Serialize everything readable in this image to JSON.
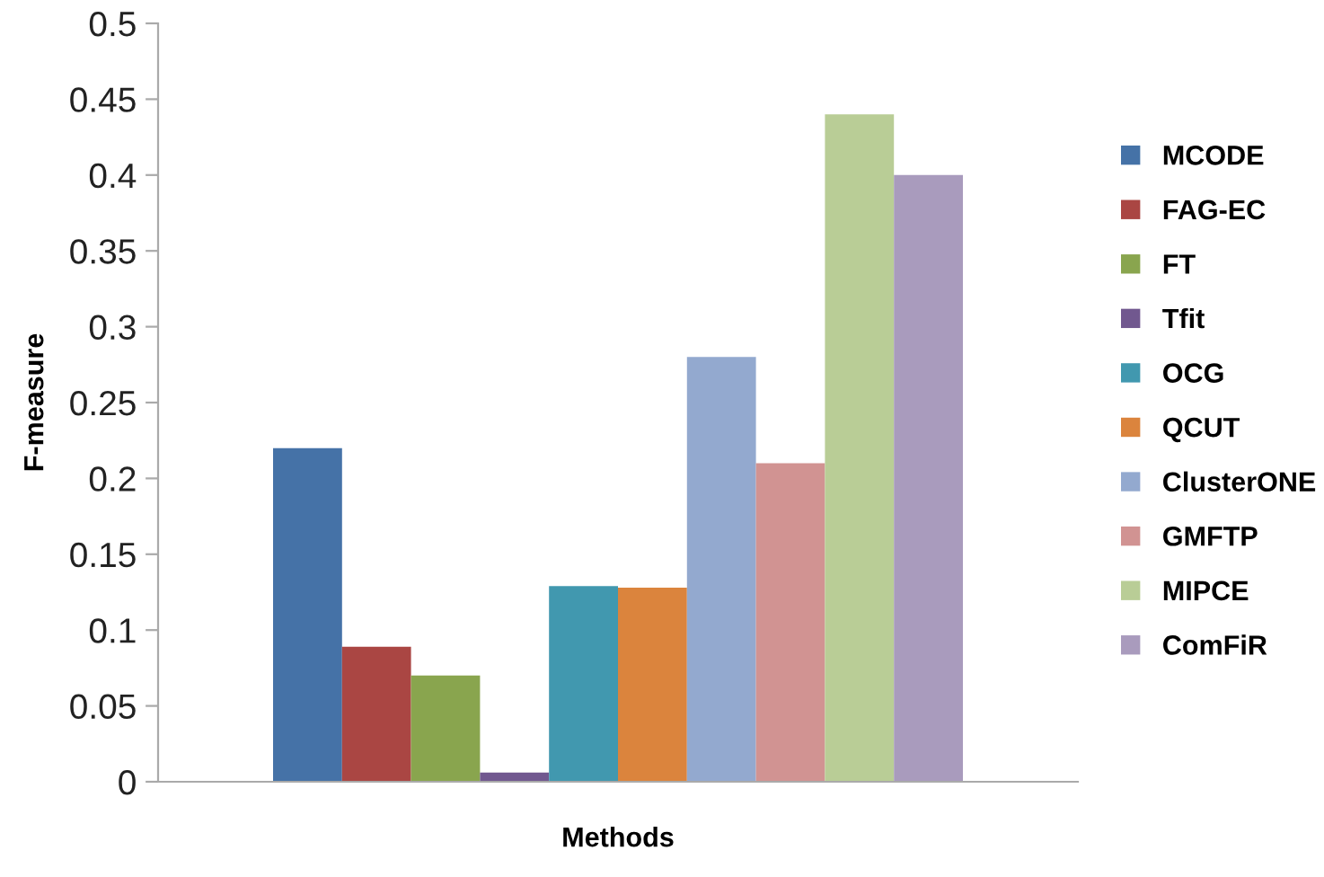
{
  "chart_data": {
    "type": "bar",
    "xlabel": "Methods",
    "ylabel": "F-measure",
    "categories": [
      null
    ],
    "series": [
      {
        "name": "MCODE",
        "color": "#4572a7",
        "values": [
          0.22
        ]
      },
      {
        "name": "FAG-EC",
        "color": "#aa4643",
        "values": [
          0.089
        ]
      },
      {
        "name": "FT",
        "color": "#89a54e",
        "values": [
          0.07
        ]
      },
      {
        "name": "Tfit",
        "color": "#71588f",
        "values": [
          0.006
        ]
      },
      {
        "name": "OCG",
        "color": "#4198af",
        "values": [
          0.129
        ]
      },
      {
        "name": "QCUT",
        "color": "#db843d",
        "values": [
          0.128
        ]
      },
      {
        "name": "ClusterONE",
        "color": "#93a9cf",
        "values": [
          0.28
        ]
      },
      {
        "name": "GMFTP",
        "color": "#d19392",
        "values": [
          0.21
        ]
      },
      {
        "name": "MIPCE",
        "color": "#b9cd96",
        "values": [
          0.44
        ]
      },
      {
        "name": "ComFiR",
        "color": "#a99bbd",
        "values": [
          0.4
        ]
      }
    ],
    "ylim": [
      0,
      0.5
    ],
    "yticks": [
      0,
      0.05,
      0.1,
      0.15,
      0.2,
      0.25,
      0.3,
      0.35,
      0.4,
      0.45,
      0.5
    ],
    "grid": false,
    "legend": "right",
    "tick_labels": "y"
  }
}
